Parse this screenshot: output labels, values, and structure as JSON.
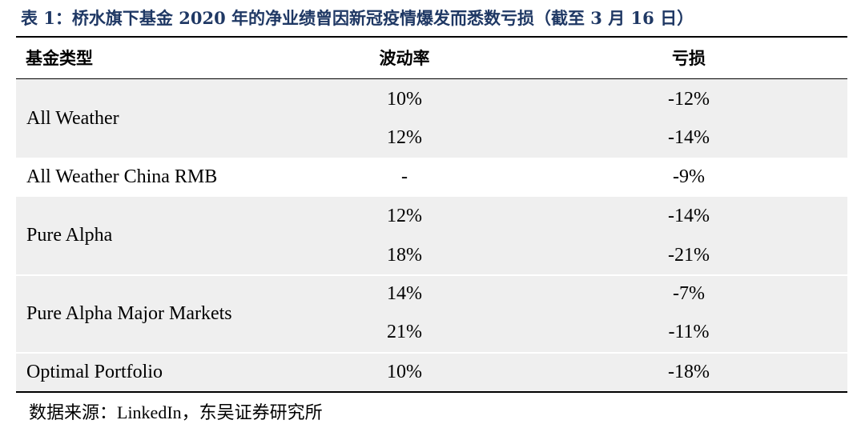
{
  "title": "表 1：桥水旗下基金 2020 年的净业绩曾因新冠疫情爆发而悉数亏损（截至 3 月 16 日）",
  "table": {
    "headers": [
      "基金类型",
      "波动率",
      "亏损"
    ],
    "groups": [
      {
        "name": "All Weather",
        "rows": [
          {
            "vol": "10%",
            "loss": "-12%"
          },
          {
            "vol": "12%",
            "loss": "-14%"
          }
        ]
      },
      {
        "name": "All Weather China RMB",
        "rows": [
          {
            "vol": "-",
            "loss": "-9%"
          }
        ]
      },
      {
        "name": "Pure Alpha",
        "rows": [
          {
            "vol": "12%",
            "loss": "-14%"
          },
          {
            "vol": "18%",
            "loss": "-21%"
          }
        ]
      },
      {
        "name": "Pure Alpha Major Markets",
        "rows": [
          {
            "vol": "14%",
            "loss": "-7%"
          },
          {
            "vol": "21%",
            "loss": "-11%"
          }
        ]
      },
      {
        "name": "Optimal Portfolio",
        "rows": [
          {
            "vol": "10%",
            "loss": "-18%"
          }
        ]
      }
    ]
  },
  "source": "数据来源：LinkedIn，东吴证券研究所",
  "colors": {
    "title": "#1f3864",
    "row_shade": "#efefef"
  }
}
